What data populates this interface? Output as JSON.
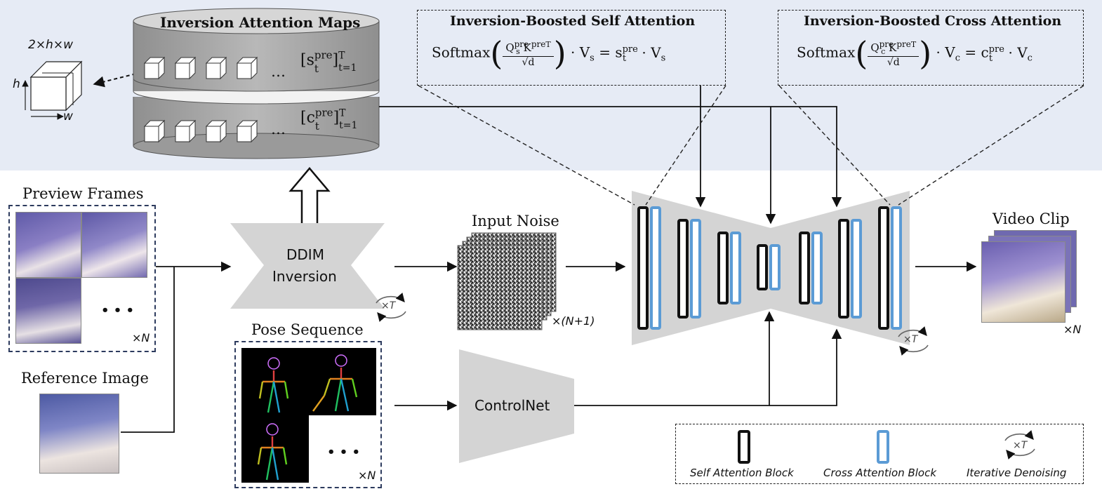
{
  "storage": {
    "title": "Inversion Attention Maps",
    "self_set": "[s",
    "cross_set": "[c",
    "pre": "pre",
    "t_sub": "t",
    "T_sup": "T",
    "range": "t=1",
    "ellipsis": "…"
  },
  "feature_dims": {
    "full": "2×h×w",
    "h": "h",
    "w": "w"
  },
  "self_attention": {
    "title": "Inversion-Boosted Self Attention",
    "softmax": "Softmax",
    "Q": "Q",
    "K": "K",
    "sub": "s",
    "pre": "pre",
    "Tsup": "T",
    "den": "√d",
    "rest_1": "· V",
    "rest_sub": "s",
    "rest_2": " = s",
    "rest_pre": "pre",
    "rest_t": "t",
    "rest_3": " · V",
    "rest_sub2": "s"
  },
  "cross_attention": {
    "title": "Inversion-Boosted Cross Attention",
    "softmax": "Softmax",
    "Q": "Q",
    "K": "K",
    "sub": "c",
    "pre": "pre",
    "Tsup": "T",
    "den": "√d",
    "rest_1": "· V",
    "rest_sub": "c",
    "rest_2": " = c",
    "rest_pre": "pre",
    "rest_t": "t",
    "rest_3": " · V",
    "rest_sub2": "c"
  },
  "preview": {
    "label": "Preview Frames",
    "dots": "• • •",
    "count": "×N"
  },
  "reference": {
    "label": "Reference Image"
  },
  "ddim": {
    "line1": "DDIM",
    "line2": "Inversion",
    "iter": "×T"
  },
  "noise": {
    "label": "Input Noise",
    "count": "×(N+1)"
  },
  "pose": {
    "label": "Pose  Sequence",
    "dots": "• • •",
    "count": "×N"
  },
  "controlnet": {
    "label": "ControlNet"
  },
  "unet": {
    "iter": "×T"
  },
  "output": {
    "label": "Video Clip",
    "count": "×N"
  },
  "legend": {
    "self": "Self Attention Block",
    "cross": "Cross Attention Block",
    "iter": "Iterative Denoising",
    "iter_glyph": "×T"
  },
  "colors": {
    "band": "#e6ebf5",
    "cross_block": "#5b9bd5",
    "self_block": "#111111",
    "gray_shape": "#d4d4d4",
    "cylinder": "#a6a6a6"
  }
}
